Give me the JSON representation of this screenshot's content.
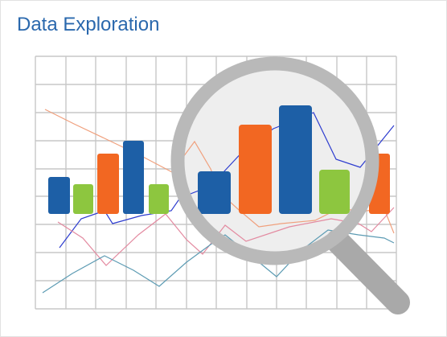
{
  "header": {
    "title": "Data Exploration"
  },
  "illustration": {
    "subject": "magnifying-glass-over-chart",
    "colors": {
      "title": "#2a68ad",
      "grid": "#c7c7c7",
      "blue": "#1d5fa6",
      "orange": "#f26722",
      "green": "#8dc63f",
      "line_navy": "#2d3ccf",
      "line_salmon": "#f0a07d",
      "line_pink": "#e38aa0",
      "line_teal": "#5c9bb3",
      "lens_rim": "#b9b9b9",
      "lens_glass": "#eeeeee",
      "handle": "#a9a9a9"
    }
  }
}
